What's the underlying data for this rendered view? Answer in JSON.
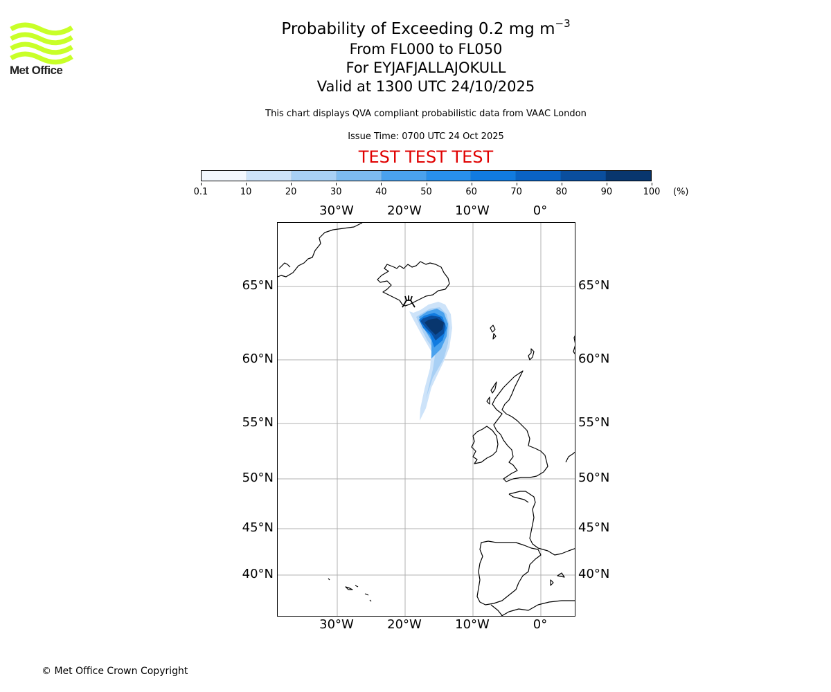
{
  "logo": {
    "text": "Met Office",
    "wave_color": "#c8ff28",
    "icon": "met-office-waves-logo"
  },
  "titles": {
    "main_prefix": "Probability of Exceeding 0.2 mg m",
    "main_exponent": "−3",
    "levels": "From FL000 to FL050",
    "volcano": "For EYJAFJALLAJOKULL",
    "valid": "Valid at 1300 UTC 24/10/2025"
  },
  "subtitle": "This chart displays QVA compliant probabilistic data from VAAC London",
  "issue_time": "Issue Time: 0700 UTC 24 Oct 2025",
  "test_banner": {
    "text": "TEST TEST TEST",
    "color": "#e00000"
  },
  "colorbar": {
    "ticks": [
      "0.1",
      "10",
      "20",
      "30",
      "40",
      "50",
      "60",
      "70",
      "80",
      "90",
      "100"
    ],
    "unit": "(%)",
    "colors": [
      "#f3f8fe",
      "#cde3f9",
      "#a8d0f5",
      "#7dbbf0",
      "#4aa2ee",
      "#2890ec",
      "#117be0",
      "#0a63c4",
      "#0a4e9e",
      "#08366e"
    ]
  },
  "map": {
    "lon_labels": [
      "30°W",
      "20°W",
      "10°W",
      "0°"
    ],
    "lat_labels": [
      "65°N",
      "60°N",
      "55°N",
      "50°N",
      "45°N",
      "40°N"
    ],
    "volcano_icon": "volcano-icon",
    "plume_colors": {
      "light": "#a8d0f5",
      "mid": "#4aa2ee",
      "dark": "#0a63c4",
      "darkest": "#08366e"
    }
  },
  "copyright": "© Met Office Crown Copyright"
}
